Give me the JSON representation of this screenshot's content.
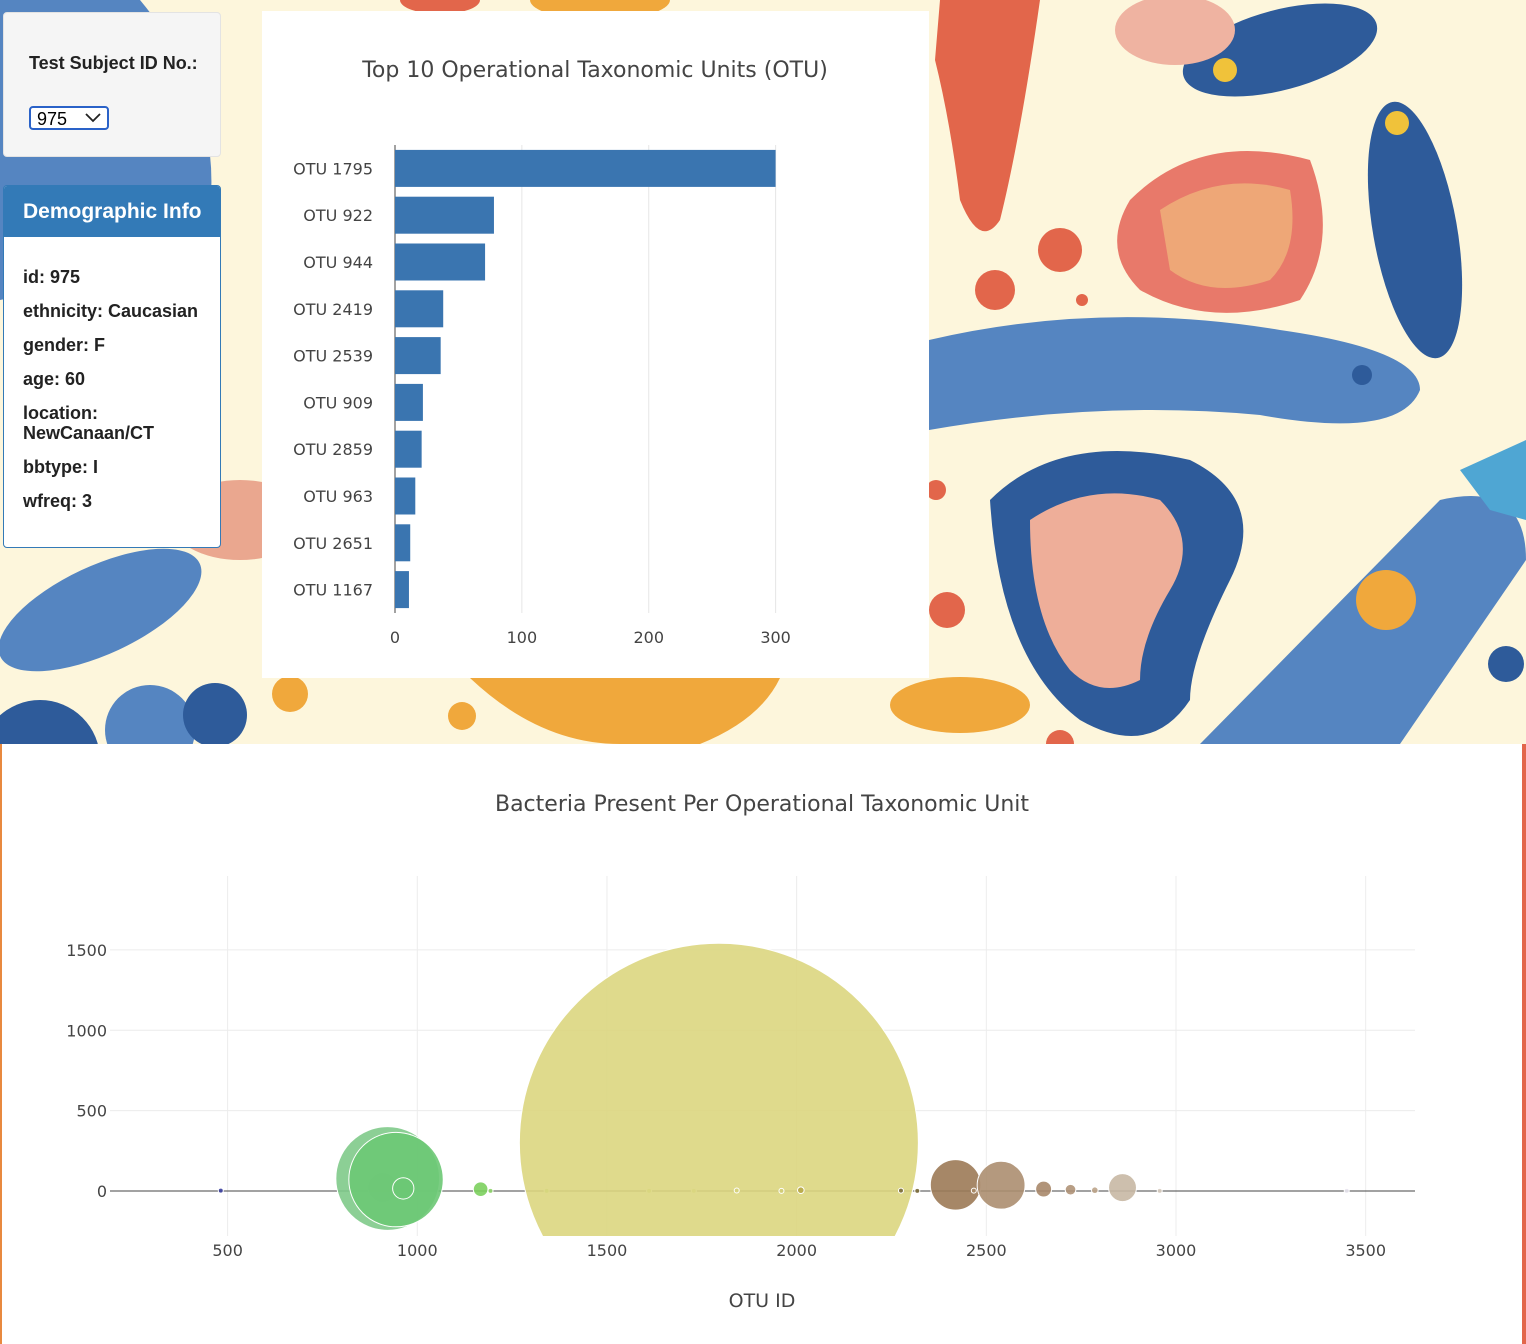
{
  "selector": {
    "label": "Test Subject ID No.:",
    "selected": "975"
  },
  "demographics": {
    "title": "Demographic Info",
    "rows": [
      "id: 975",
      "ethnicity: Caucasian",
      "gender: F",
      "age: 60",
      "location: NewCanaan/CT",
      "bbtype: I",
      "wfreq: 3"
    ]
  },
  "colors": {
    "bar": "#3a75b0",
    "panel_header": "#337ab7",
    "select_border": "#2a62c8"
  },
  "chart_data": [
    {
      "type": "bar",
      "orientation": "horizontal",
      "title": "Top 10 Operational Taxonomic Units (OTU)",
      "categories": [
        "OTU 1795",
        "OTU 922",
        "OTU 944",
        "OTU 2419",
        "OTU 2539",
        "OTU 909",
        "OTU 2859",
        "OTU 963",
        "OTU 2651",
        "OTU 1167"
      ],
      "values": [
        300,
        78,
        71,
        38,
        36,
        22,
        21,
        16,
        12,
        11
      ],
      "xlim": [
        0,
        335
      ],
      "xticks": [
        0,
        100,
        200,
        300
      ],
      "grid": true
    },
    {
      "type": "scatter",
      "subtype": "bubble",
      "title": "Bacteria Present Per Operational Taxonomic Unit",
      "xlabel": "OTU ID",
      "ylabel": "",
      "xlim": [
        190,
        3630
      ],
      "ylim": [
        -280,
        1960
      ],
      "xticks": [
        500,
        1000,
        1500,
        2000,
        2500,
        3000,
        3500
      ],
      "yticks": [
        0,
        500,
        1000,
        1500
      ],
      "grid": true,
      "points": [
        {
          "x": 482,
          "y": 2,
          "size": 2,
          "color": "#3a3f9e"
        },
        {
          "x": 909,
          "y": 22,
          "size": 22,
          "color": "#74c68a"
        },
        {
          "x": 922,
          "y": 78,
          "size": 78,
          "color": "#7fca8a"
        },
        {
          "x": 944,
          "y": 71,
          "size": 71,
          "color": "#6cc874"
        },
        {
          "x": 963,
          "y": 16,
          "size": 16,
          "color": "#6cc874"
        },
        {
          "x": 1167,
          "y": 11,
          "size": 11,
          "color": "#7cd05e"
        },
        {
          "x": 1193,
          "y": 1,
          "size": 1,
          "color": "#8ed46a"
        },
        {
          "x": 1341,
          "y": 1,
          "size": 1,
          "color": "#a6d870"
        },
        {
          "x": 1611,
          "y": 1,
          "size": 1,
          "color": "#c8dc7c"
        },
        {
          "x": 1729,
          "y": 1,
          "size": 1,
          "color": "#d2da80"
        },
        {
          "x": 1795,
          "y": 300,
          "size": 300,
          "color": "#dbd680"
        },
        {
          "x": 1842,
          "y": 3,
          "size": 3,
          "color": "#d6d27a"
        },
        {
          "x": 1960,
          "y": 1,
          "size": 1,
          "color": "#d2cc76"
        },
        {
          "x": 2011,
          "y": 5,
          "size": 5,
          "color": "#b8a848"
        },
        {
          "x": 2275,
          "y": 2,
          "size": 2,
          "color": "#7a6a3a"
        },
        {
          "x": 2318,
          "y": 1,
          "size": 1,
          "color": "#7a6a3a"
        },
        {
          "x": 2419,
          "y": 38,
          "size": 38,
          "color": "#9c7a56"
        },
        {
          "x": 2467,
          "y": 2,
          "size": 2,
          "color": "#a88a66"
        },
        {
          "x": 2539,
          "y": 36,
          "size": 36,
          "color": "#ac8e70"
        },
        {
          "x": 2651,
          "y": 12,
          "size": 12,
          "color": "#a8886a"
        },
        {
          "x": 2722,
          "y": 8,
          "size": 8,
          "color": "#b09478"
        },
        {
          "x": 2786,
          "y": 5,
          "size": 5,
          "color": "#bca48a"
        },
        {
          "x": 2859,
          "y": 21,
          "size": 21,
          "color": "#c8b8a4"
        },
        {
          "x": 2957,
          "y": 1,
          "size": 1,
          "color": "#d8ccc0"
        },
        {
          "x": 3450,
          "y": 1,
          "size": 1,
          "color": "#e8e4ee"
        }
      ]
    }
  ]
}
